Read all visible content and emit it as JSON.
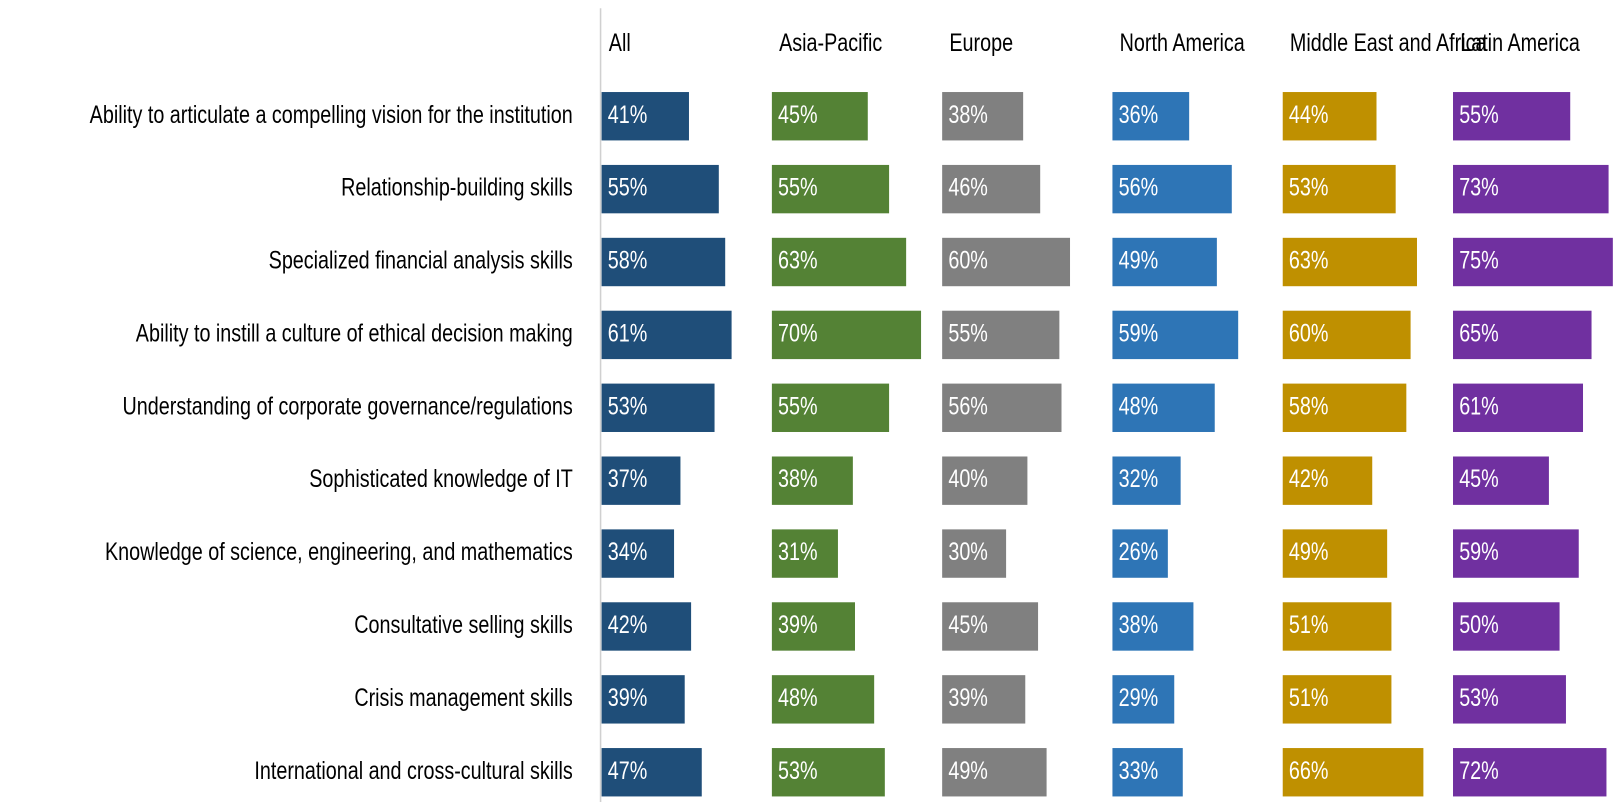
{
  "chart_data": {
    "type": "bar",
    "categories": [
      "Ability to articulate a compelling vision for the institution",
      "Relationship-building skills",
      "Specialized financial analysis skills",
      "Ability to instill a culture of ethical decision making",
      "Understanding of corporate governance/regulations",
      "Sophisticated knowledge of IT",
      "Knowledge of science, engineering, and mathematics",
      "Consultative selling skills",
      "Crisis management skills",
      "International and cross-cultural skills"
    ],
    "series": [
      {
        "name": "All",
        "color": "#1f4e79",
        "values": [
          41,
          55,
          58,
          61,
          53,
          37,
          34,
          42,
          39,
          47
        ],
        "value_labels": [
          "41%",
          "55%",
          "58%",
          "61%",
          "53%",
          "37%",
          "34%",
          "42%",
          "39%",
          "47%"
        ]
      },
      {
        "name": "Asia-Pacific",
        "color": "#548235",
        "values": [
          45,
          55,
          63,
          70,
          55,
          38,
          31,
          39,
          48,
          53
        ],
        "value_labels": [
          "45%",
          "55%",
          "63%",
          "70%",
          "55%",
          "38%",
          "31%",
          "39%",
          "48%",
          "53%"
        ]
      },
      {
        "name": "Europe",
        "color": "#808080",
        "values": [
          38,
          46,
          60,
          55,
          56,
          40,
          30,
          45,
          39,
          49
        ],
        "value_labels": [
          "38%",
          "46%",
          "60%",
          "55%",
          "56%",
          "40%",
          "30%",
          "45%",
          "39%",
          "49%"
        ]
      },
      {
        "name": "North America",
        "color": "#2e75b6",
        "values": [
          36,
          56,
          49,
          59,
          48,
          32,
          26,
          38,
          29,
          33
        ],
        "value_labels": [
          "36%",
          "56%",
          "49%",
          "59%",
          "48%",
          "32%",
          "26%",
          "38%",
          "29%",
          "33%"
        ]
      },
      {
        "name": "Middle East and Africa",
        "color": "#bf9000",
        "values": [
          44,
          53,
          63,
          60,
          58,
          42,
          49,
          51,
          51,
          66
        ],
        "value_labels": [
          "44%",
          "53%",
          "63%",
          "60%",
          "58%",
          "42%",
          "49%",
          "51%",
          "51%",
          "66%"
        ]
      },
      {
        "name": "Latin America",
        "color": "#7030a0",
        "values": [
          55,
          73,
          75,
          65,
          61,
          45,
          59,
          50,
          53,
          72
        ],
        "value_labels": [
          "55%",
          "73%",
          "75%",
          "65%",
          "61%",
          "45%",
          "59%",
          "50%",
          "53%",
          "72%"
        ]
      }
    ]
  }
}
